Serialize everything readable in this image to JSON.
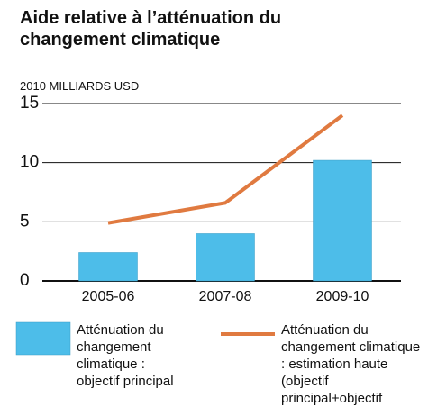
{
  "chart_data": {
    "type": "bar",
    "title": "Aide relative à l’atténuation du changement climatique",
    "y_label": "2010 MILLIARDS USD",
    "categories": [
      "2005-06",
      "2007-08",
      "2009-10"
    ],
    "series": [
      {
        "name": "Atténuation du changement climatique : objectif principal",
        "type": "bar",
        "color": "#4dbde9",
        "values": [
          2.4,
          4.0,
          10.2
        ]
      },
      {
        "name": "Atténuation du changement climatique : estimation haute (objectif principal+objectif significatif)",
        "type": "line",
        "color": "#e07a40",
        "values": [
          4.9,
          6.6,
          14.0
        ]
      }
    ],
    "ylim": [
      0,
      15
    ],
    "yticks": [
      0,
      5,
      10,
      15
    ],
    "grid": true
  }
}
